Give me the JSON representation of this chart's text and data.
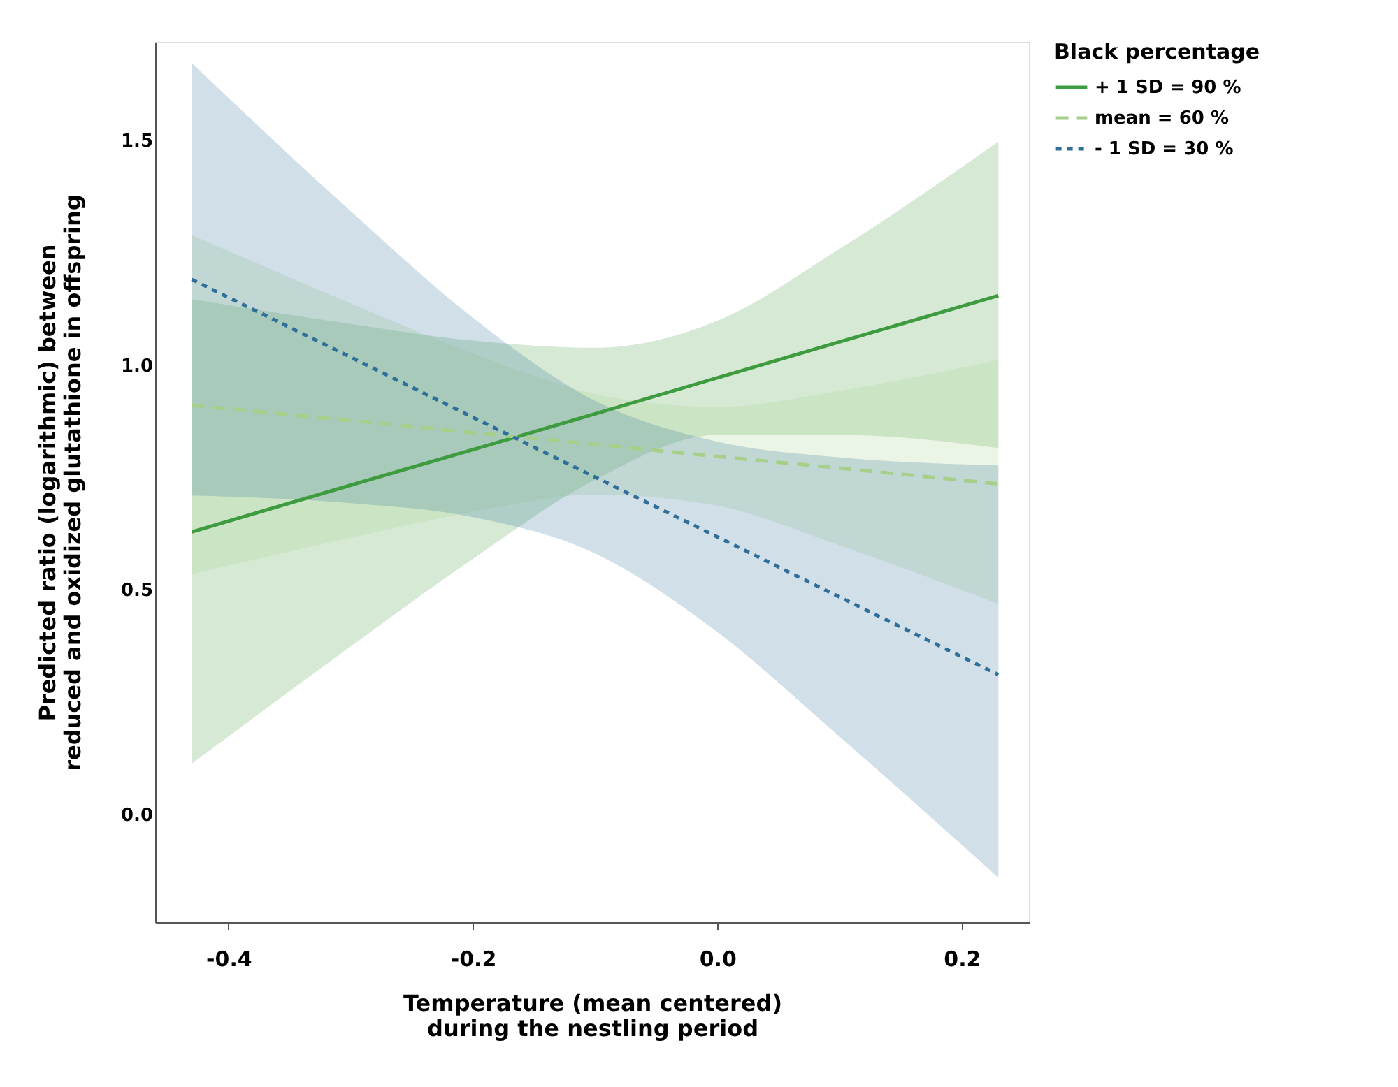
{
  "chart_data": {
    "type": "line",
    "xlabel": "Temperature (mean centered) during the nestling period",
    "ylabel": "Predicted ratio (logarithmic) between reduced and oxidized glutathione in offspring",
    "legend_title": "Black percentage",
    "legend": "right",
    "grid": false,
    "xlim": [
      -0.46,
      0.255
    ],
    "ylim": [
      -0.24,
      1.72
    ],
    "xticks": [
      {
        "value": -0.4,
        "label": "-0.4"
      },
      {
        "value": -0.2,
        "label": "-0.2"
      },
      {
        "value": 0,
        "label": "0.0"
      },
      {
        "value": 0.2,
        "label": "0.2"
      }
    ],
    "yticks": [
      {
        "value": 0,
        "label": "0.0"
      },
      0.5,
      {
        "value": 1,
        "label": "1.0"
      },
      1.5
    ],
    "x": [
      -0.43,
      -0.3,
      -0.2,
      -0.1,
      0,
      0.1,
      0.23
    ],
    "series": [
      {
        "name": "+ 1 SD = 90 %",
        "color": "#3f9b3f",
        "line_style": "solid",
        "values": [
          0.629,
          0.733,
          0.812,
          0.892,
          0.972,
          1.052,
          1.155
        ],
        "lower": [
          0.113,
          0.374,
          0.569,
          0.745,
          0.845,
          0.845,
          0.816
        ],
        "upper": [
          1.147,
          1.092,
          1.055,
          1.039,
          1.099,
          1.259,
          1.498
        ]
      },
      {
        "name": "mean = 60 %",
        "color": "#a6d08a",
        "line_style": "dashed",
        "values": [
          0.911,
          0.877,
          0.85,
          0.824,
          0.797,
          0.771,
          0.736
        ],
        "lower": [
          0.535,
          0.616,
          0.674,
          0.712,
          0.687,
          0.599,
          0.468
        ],
        "upper": [
          1.29,
          1.138,
          1.026,
          0.936,
          0.907,
          0.943,
          1.012
        ]
      },
      {
        "name": "- 1 SD = 30 %",
        "color": "#2f6f9a",
        "line_style": "dotted",
        "values": [
          1.191,
          1.018,
          0.884,
          0.751,
          0.618,
          0.484,
          0.311
        ],
        "lower": [
          0.71,
          0.693,
          0.662,
          0.581,
          0.406,
          0.173,
          -0.141
        ],
        "upper": [
          1.673,
          1.343,
          1.106,
          0.921,
          0.83,
          0.795,
          0.777
        ]
      }
    ]
  }
}
